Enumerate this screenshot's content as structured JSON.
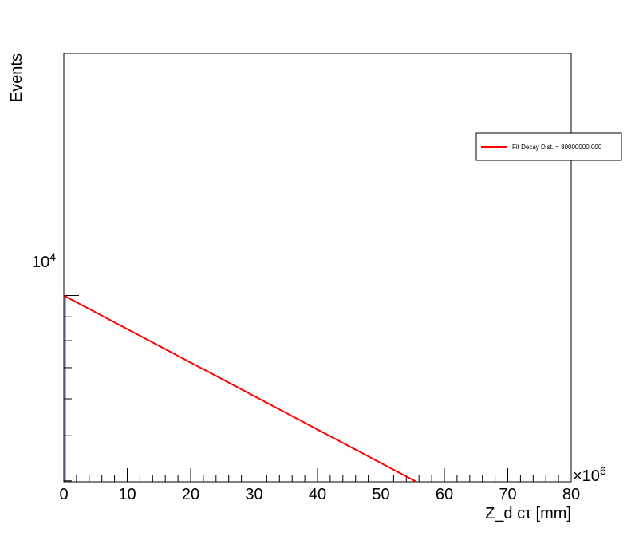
{
  "chart_data": {
    "type": "line",
    "xlabel": "Z_d cτ [mm]",
    "ylabel": "Events",
    "x_multiplier": "×10",
    "x_multiplier_exp": "6",
    "xlim": [
      0,
      80
    ],
    "xticks_major": [
      0,
      10,
      20,
      30,
      40,
      50,
      60,
      70,
      80
    ],
    "y_log_scale": true,
    "ytick_label_base": "10",
    "ytick_label_exp": "4",
    "ytick_value": 10000,
    "ylim_log": [
      3.6,
      4.52
    ],
    "grid": false,
    "legend_position": "top-right",
    "series": [
      {
        "name": "Fit Decay Dist. = 80000000.000",
        "color": "#ff0000",
        "x": [
          0,
          55.6
        ],
        "y": [
          10000,
          3981
        ]
      },
      {
        "color": "#0000cc",
        "x": [
          0.2,
          0.2
        ],
        "y": [
          3981,
          10000
        ]
      }
    ]
  }
}
